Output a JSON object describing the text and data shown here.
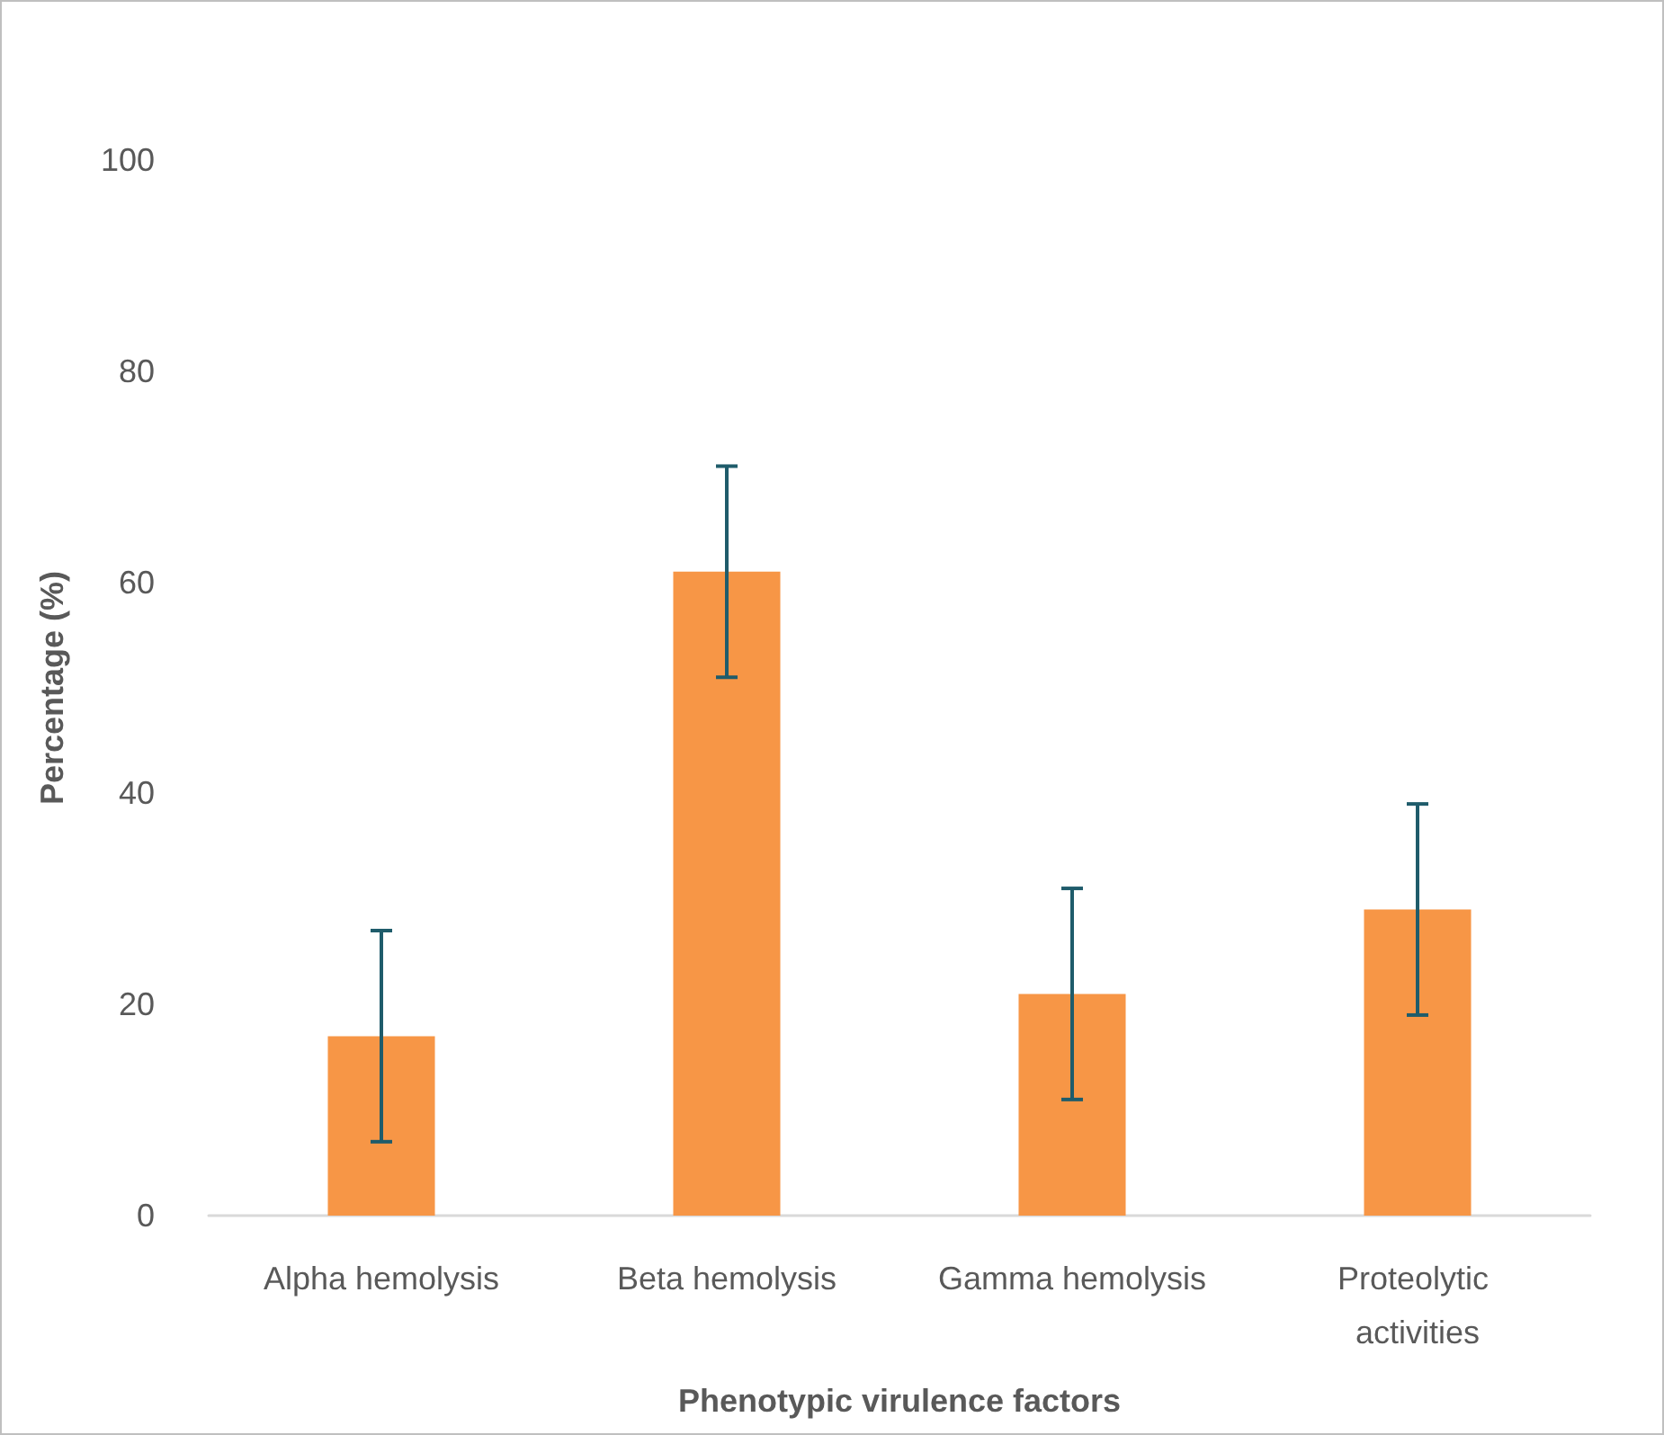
{
  "chart_data": {
    "type": "bar",
    "xlabel": "Phenotypic virulence factors",
    "ylabel": "Percentage (%)",
    "categories": [
      "Alpha hemolysis",
      "Beta hemolysis",
      "Gamma hemolysis",
      "Proteolytic activities"
    ],
    "values": [
      17,
      61,
      21,
      29
    ],
    "errors": [
      10,
      10,
      10,
      10
    ],
    "color": "#f79646",
    "ylim": [
      0,
      100
    ],
    "yticks": [
      0,
      20,
      40,
      60,
      80,
      100
    ],
    "grid": false
  }
}
